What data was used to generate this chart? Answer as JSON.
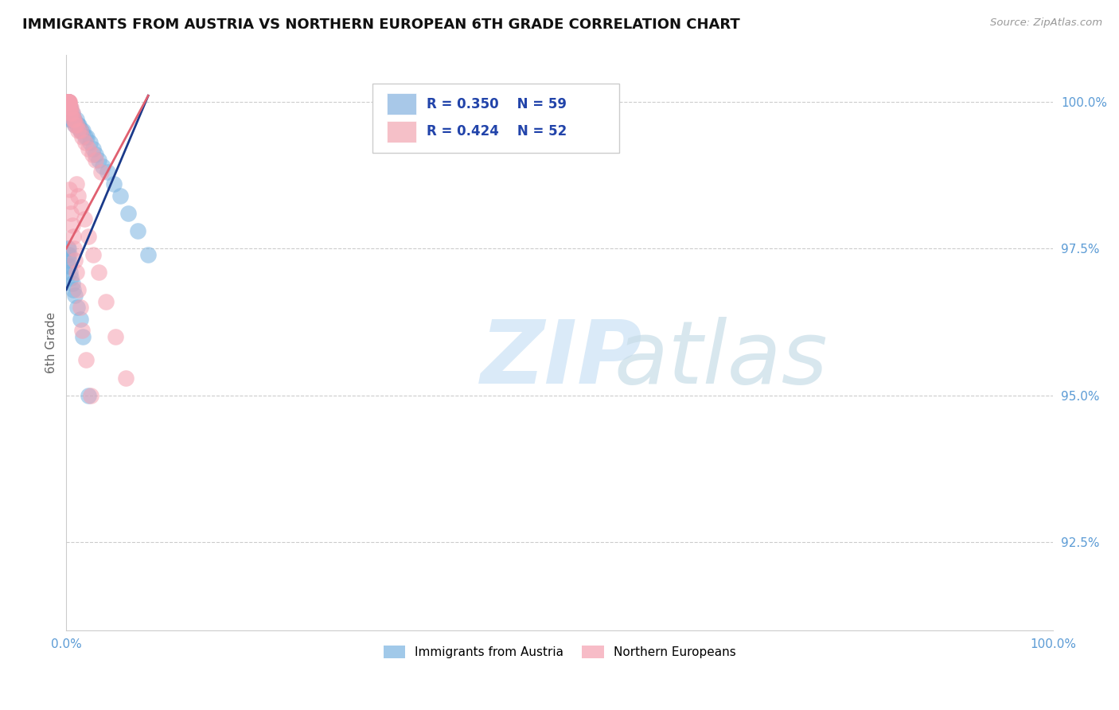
{
  "title": "IMMIGRANTS FROM AUSTRIA VS NORTHERN EUROPEAN 6TH GRADE CORRELATION CHART",
  "source_text": "Source: ZipAtlas.com",
  "ylabel": "6th Grade",
  "xmin": 0.0,
  "xmax": 1.0,
  "ymin": 0.91,
  "ymax": 1.008,
  "yticks": [
    0.925,
    0.95,
    0.975,
    1.0
  ],
  "ytick_labels": [
    "92.5%",
    "95.0%",
    "97.5%",
    "100.0%"
  ],
  "blue_color": "#7ab3e0",
  "pink_color": "#f5a0b0",
  "blue_line_color": "#1a3a8a",
  "pink_line_color": "#e06070",
  "legend_blue_fill": "#a8c8e8",
  "legend_pink_fill": "#f5c0c8",
  "watermark_color": "#daeaf8",
  "grid_color": "#cccccc",
  "axis_tick_color": "#5b9bd5",
  "title_color": "#111111",
  "source_color": "#999999",
  "legend_text_color": "#2244aa",
  "background_color": "#ffffff",
  "blue_R": "0.350",
  "blue_N": "59",
  "pink_R": "0.424",
  "pink_N": "52",
  "blue_x": [
    0.001,
    0.001,
    0.001,
    0.001,
    0.001,
    0.001,
    0.002,
    0.002,
    0.002,
    0.002,
    0.003,
    0.003,
    0.003,
    0.004,
    0.004,
    0.004,
    0.005,
    0.005,
    0.006,
    0.006,
    0.007,
    0.008,
    0.009,
    0.01,
    0.011,
    0.012,
    0.013,
    0.014,
    0.015,
    0.017,
    0.019,
    0.021,
    0.024,
    0.027,
    0.03,
    0.033,
    0.037,
    0.042,
    0.048,
    0.055,
    0.063,
    0.072,
    0.083,
    0.001,
    0.001,
    0.001,
    0.002,
    0.002,
    0.003,
    0.003,
    0.004,
    0.005,
    0.006,
    0.007,
    0.009,
    0.011,
    0.014,
    0.017,
    0.022
  ],
  "blue_y": [
    1.0,
    1.0,
    1.0,
    1.0,
    1.0,
    1.0,
    1.0,
    1.0,
    1.0,
    0.999,
    0.999,
    0.999,
    0.998,
    0.999,
    0.998,
    0.997,
    0.998,
    0.997,
    0.998,
    0.997,
    0.997,
    0.997,
    0.996,
    0.997,
    0.996,
    0.996,
    0.996,
    0.995,
    0.995,
    0.995,
    0.994,
    0.994,
    0.993,
    0.992,
    0.991,
    0.99,
    0.989,
    0.988,
    0.986,
    0.984,
    0.981,
    0.978,
    0.974,
    0.975,
    0.974,
    0.972,
    0.975,
    0.973,
    0.974,
    0.972,
    0.971,
    0.97,
    0.969,
    0.968,
    0.967,
    0.965,
    0.963,
    0.96,
    0.95
  ],
  "pink_x": [
    0.001,
    0.001,
    0.001,
    0.001,
    0.001,
    0.002,
    0.002,
    0.002,
    0.002,
    0.003,
    0.003,
    0.003,
    0.004,
    0.004,
    0.005,
    0.005,
    0.006,
    0.007,
    0.008,
    0.009,
    0.01,
    0.012,
    0.014,
    0.016,
    0.019,
    0.022,
    0.026,
    0.03,
    0.035,
    0.01,
    0.012,
    0.015,
    0.018,
    0.022,
    0.027,
    0.033,
    0.04,
    0.05,
    0.06,
    0.003,
    0.004,
    0.005,
    0.006,
    0.007,
    0.008,
    0.009,
    0.01,
    0.012,
    0.014,
    0.016,
    0.02,
    0.025
  ],
  "pink_y": [
    1.0,
    1.0,
    1.0,
    1.0,
    1.0,
    1.0,
    1.0,
    1.0,
    1.0,
    1.0,
    1.0,
    0.999,
    0.999,
    0.998,
    0.999,
    0.998,
    0.998,
    0.997,
    0.997,
    0.996,
    0.996,
    0.995,
    0.995,
    0.994,
    0.993,
    0.992,
    0.991,
    0.99,
    0.988,
    0.986,
    0.984,
    0.982,
    0.98,
    0.977,
    0.974,
    0.971,
    0.966,
    0.96,
    0.953,
    0.985,
    0.983,
    0.981,
    0.979,
    0.977,
    0.975,
    0.973,
    0.971,
    0.968,
    0.965,
    0.961,
    0.956,
    0.95
  ],
  "blue_trend_x": [
    0.0,
    0.083
  ],
  "blue_trend_y": [
    0.968,
    1.001
  ],
  "pink_trend_x": [
    0.0,
    0.083
  ],
  "pink_trend_y": [
    0.975,
    1.001
  ]
}
